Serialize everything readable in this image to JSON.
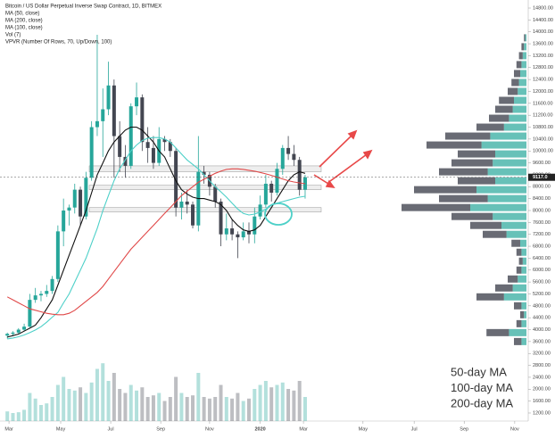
{
  "chart_data": {
    "type": "candlestick",
    "title": "Bitcoin / US Dollar Perpetual Inverse Swap Contract, 1D, BITMEX",
    "indicators": [
      "MA (50, close)",
      "MA (200, close)",
      "MA (100, close)",
      "Vol (7)",
      "VPVR (Number Of Rows, 70, Up/Down, 100)"
    ],
    "x": [
      0,
      1,
      2,
      3,
      4,
      5,
      6,
      7,
      8,
      9,
      10,
      11,
      12,
      13,
      14,
      15,
      16,
      17,
      18,
      19,
      20,
      21,
      22,
      23,
      24,
      25,
      26,
      27,
      28,
      29,
      30,
      31,
      32,
      33,
      34,
      35,
      36,
      37,
      38,
      39,
      40,
      41,
      42,
      43,
      44,
      45,
      46,
      47,
      48,
      49,
      50,
      51,
      52,
      53
    ],
    "open": [
      3800,
      3860,
      3900,
      4000,
      4100,
      5000,
      5150,
      5200,
      5300,
      5700,
      7300,
      8000,
      8100,
      8700,
      7800,
      9100,
      10800,
      11000,
      11400,
      12200,
      10500,
      9800,
      9500,
      11500,
      11800,
      10300,
      10100,
      9600,
      10400,
      10300,
      10000,
      8100,
      8300,
      8200,
      7500,
      9300,
      9200,
      8800,
      8300,
      7200,
      7400,
      7200,
      7100,
      7300,
      7200,
      7800,
      8200,
      8900,
      8600,
      9400,
      10100,
      9900,
      9700,
      8700
    ],
    "high": [
      3900,
      3950,
      4050,
      4200,
      5200,
      5400,
      5300,
      5500,
      5800,
      7500,
      8400,
      8200,
      8900,
      8800,
      9300,
      11000,
      13900,
      12100,
      13000,
      12400,
      11000,
      10200,
      11600,
      12300,
      11900,
      10800,
      10500,
      10800,
      10500,
      10400,
      10100,
      8600,
      8700,
      8300,
      10500,
      9500,
      9300,
      8900,
      8400,
      7900,
      7700,
      7300,
      7600,
      7600,
      8100,
      8500,
      9200,
      9000,
      9600,
      10200,
      10500,
      10200,
      9800,
      9200
    ],
    "low": [
      3700,
      3780,
      3850,
      3950,
      4080,
      4900,
      4950,
      5100,
      5200,
      5600,
      6800,
      7500,
      7900,
      7500,
      7700,
      9000,
      10500,
      9800,
      11200,
      9100,
      9300,
      9100,
      9400,
      11200,
      10000,
      9600,
      9400,
      9500,
      10000,
      9800,
      7800,
      7700,
      7900,
      7400,
      7300,
      8900,
      8500,
      8100,
      6800,
      7000,
      7000,
      6400,
      7000,
      6900,
      6900,
      7700,
      8100,
      8300,
      8500,
      9200,
      9700,
      9500,
      8500,
      8400
    ],
    "close": [
      3860,
      3900,
      4000,
      4100,
      5000,
      5150,
      5200,
      5300,
      5700,
      7300,
      8000,
      8100,
      8700,
      7800,
      9100,
      10800,
      11000,
      11400,
      12200,
      10500,
      9800,
      9500,
      11500,
      11800,
      10300,
      10100,
      9600,
      10400,
      10300,
      10000,
      8100,
      8300,
      8200,
      7500,
      9300,
      9200,
      8800,
      8300,
      7200,
      7400,
      7200,
      7100,
      7300,
      7200,
      7800,
      8200,
      8900,
      8600,
      9400,
      10100,
      9900,
      9700,
      8700,
      9117
    ],
    "up_color": "#26a69a",
    "down_color": "#434651",
    "moving_averages": [
      {
        "name": "50-day MA",
        "color": "#111111",
        "values": [
          3750,
          3800,
          3850,
          3950,
          4050,
          4150,
          4400,
          4700,
          5000,
          5500,
          6000,
          6500,
          7000,
          7500,
          8000,
          8600,
          9200,
          9600,
          10000,
          10300,
          10500,
          10700,
          10800,
          10800,
          10700,
          10500,
          10300,
          10000,
          9800,
          9400,
          9000,
          8700,
          8550,
          8450,
          8400,
          8400,
          8350,
          8300,
          8200,
          8000,
          7700,
          7500,
          7350,
          7300,
          7350,
          7500,
          7800,
          8100,
          8400,
          8700,
          9000,
          9200,
          9300,
          9250
        ]
      },
      {
        "name": "100-day MA",
        "color": "#4dd0c8",
        "values": [
          3690,
          3720,
          3760,
          3820,
          3900,
          3990,
          4100,
          4250,
          4420,
          4580,
          4900,
          5200,
          5600,
          6000,
          6400,
          6900,
          7400,
          8000,
          8500,
          9000,
          9400,
          9700,
          10000,
          10200,
          10350,
          10430,
          10450,
          10450,
          10400,
          10300,
          10100,
          9900,
          9700,
          9550,
          9400,
          9200,
          9000,
          8800,
          8630,
          8450,
          8250,
          8050,
          7900,
          7850,
          7880,
          7950,
          8050,
          8180,
          8250,
          8300,
          8350,
          8400,
          8450,
          8480
        ]
      },
      {
        "name": "200-day MA",
        "color": "#e04848",
        "values": [
          5100,
          5000,
          4900,
          4800,
          4700,
          4650,
          4600,
          4550,
          4520,
          4500,
          4500,
          4550,
          4650,
          4800,
          4950,
          5100,
          5250,
          5450,
          5700,
          5950,
          6200,
          6450,
          6700,
          6900,
          7100,
          7300,
          7500,
          7700,
          7900,
          8100,
          8300,
          8500,
          8650,
          8800,
          8950,
          9050,
          9150,
          9250,
          9320,
          9380,
          9400,
          9400,
          9380,
          9350,
          9320,
          9280,
          9230,
          9180,
          9120,
          9060,
          9000,
          8960,
          8930,
          8900
        ]
      }
    ],
    "volume": [
      12,
      10,
      11,
      14,
      35,
      28,
      20,
      22,
      30,
      45,
      55,
      40,
      38,
      42,
      35,
      48,
      65,
      72,
      50,
      60,
      40,
      35,
      45,
      38,
      42,
      30,
      32,
      35,
      25,
      30,
      55,
      35,
      30,
      32,
      60,
      30,
      28,
      30,
      45,
      30,
      28,
      35,
      25,
      28,
      40,
      45,
      50,
      42,
      45,
      48,
      40,
      38,
      50,
      30
    ],
    "volume_ylim": [
      0,
      100
    ],
    "vpvr": {
      "levels": [
        3600,
        3900,
        4200,
        4500,
        4800,
        5100,
        5400,
        5700,
        6000,
        6300,
        6600,
        6900,
        7200,
        7500,
        7800,
        8100,
        8400,
        8700,
        9000,
        9300,
        9600,
        9900,
        10200,
        10500,
        10800,
        11100,
        11400,
        11700,
        12000,
        12300,
        12600,
        12900,
        13200,
        13500,
        13800
      ],
      "up": [
        4,
        14,
        4,
        2,
        4,
        18,
        11,
        7,
        4,
        3,
        4,
        5,
        16,
        20,
        27,
        45,
        31,
        40,
        25,
        31,
        27,
        25,
        36,
        29,
        18,
        14,
        11,
        10,
        7,
        6,
        5,
        4,
        3,
        2,
        1
      ],
      "down": [
        6,
        18,
        4,
        3,
        6,
        22,
        14,
        8,
        4,
        3,
        4,
        7,
        19,
        25,
        33,
        55,
        39,
        50,
        30,
        39,
        33,
        30,
        44,
        36,
        22,
        16,
        14,
        12,
        8,
        6,
        5,
        4,
        3,
        2,
        1
      ],
      "xlim": [
        0,
        100
      ]
    },
    "zones": [
      {
        "low": 9300,
        "high": 9500
      },
      {
        "low": 8700,
        "high": 8850
      },
      {
        "low": 7950,
        "high": 8100
      }
    ],
    "last_price": {
      "value": 9117,
      "label": "9117.0"
    },
    "xlim": [
      -1.3,
      92.7
    ],
    "xticks": [
      {
        "value": 0.3,
        "label": "Mar"
      },
      {
        "value": 9.5,
        "label": "May"
      },
      {
        "value": 18.4,
        "label": "Jul"
      },
      {
        "value": 27.3,
        "label": "Sep"
      },
      {
        "value": 36,
        "label": "Nov"
      },
      {
        "value": 45,
        "label": "2020"
      },
      {
        "value": 52.7,
        "label": "Mar"
      },
      {
        "value": 63.3,
        "label": "May"
      },
      {
        "value": 72.4,
        "label": "Jul"
      },
      {
        "value": 81.3,
        "label": "Sep"
      },
      {
        "value": 90.3,
        "label": "Nov"
      }
    ],
    "ylim": [
      930,
      15070
    ],
    "yticks": [
      {
        "value": 1200,
        "label": "1200.00"
      },
      {
        "value": 1600,
        "label": "1600.00"
      },
      {
        "value": 2000,
        "label": "2000.00"
      },
      {
        "value": 2400,
        "label": "2400.00"
      },
      {
        "value": 2800,
        "label": "2800.00"
      },
      {
        "value": 3200,
        "label": "3200.00"
      },
      {
        "value": 3600,
        "label": "3600.00"
      },
      {
        "value": 4000,
        "label": "4000.00"
      },
      {
        "value": 4400,
        "label": "4400.00"
      },
      {
        "value": 4800,
        "label": "4800.00"
      },
      {
        "value": 5200,
        "label": "5200.00"
      },
      {
        "value": 5600,
        "label": "5600.00"
      },
      {
        "value": 6000,
        "label": "6000.00"
      },
      {
        "value": 6400,
        "label": "6400.00"
      },
      {
        "value": 6800,
        "label": "6800.00"
      },
      {
        "value": 7200,
        "label": "7200.00"
      },
      {
        "value": 7600,
        "label": "7600.00"
      },
      {
        "value": 8000,
        "label": "8000.00"
      },
      {
        "value": 8400,
        "label": "8400.00"
      },
      {
        "value": 8800,
        "label": "8800.00"
      },
      {
        "value": 9200,
        "label": "9200.00"
      },
      {
        "value": 9600,
        "label": "9600.00"
      },
      {
        "value": 10000,
        "label": "10000.00"
      },
      {
        "value": 10400,
        "label": "10400.00"
      },
      {
        "value": 10800,
        "label": "10800.00"
      },
      {
        "value": 11200,
        "label": "11200.00"
      },
      {
        "value": 11600,
        "label": "11600.00"
      },
      {
        "value": 12000,
        "label": "12000.00"
      },
      {
        "value": 12400,
        "label": "12400.00"
      },
      {
        "value": 12800,
        "label": "12800.00"
      },
      {
        "value": 13200,
        "label": "13200.00"
      },
      {
        "value": 13600,
        "label": "13600.00"
      },
      {
        "value": 14000,
        "label": "14000.00"
      },
      {
        "value": 14400,
        "label": "14400.00"
      },
      {
        "value": 14800,
        "label": "14800.00"
      }
    ]
  }
}
